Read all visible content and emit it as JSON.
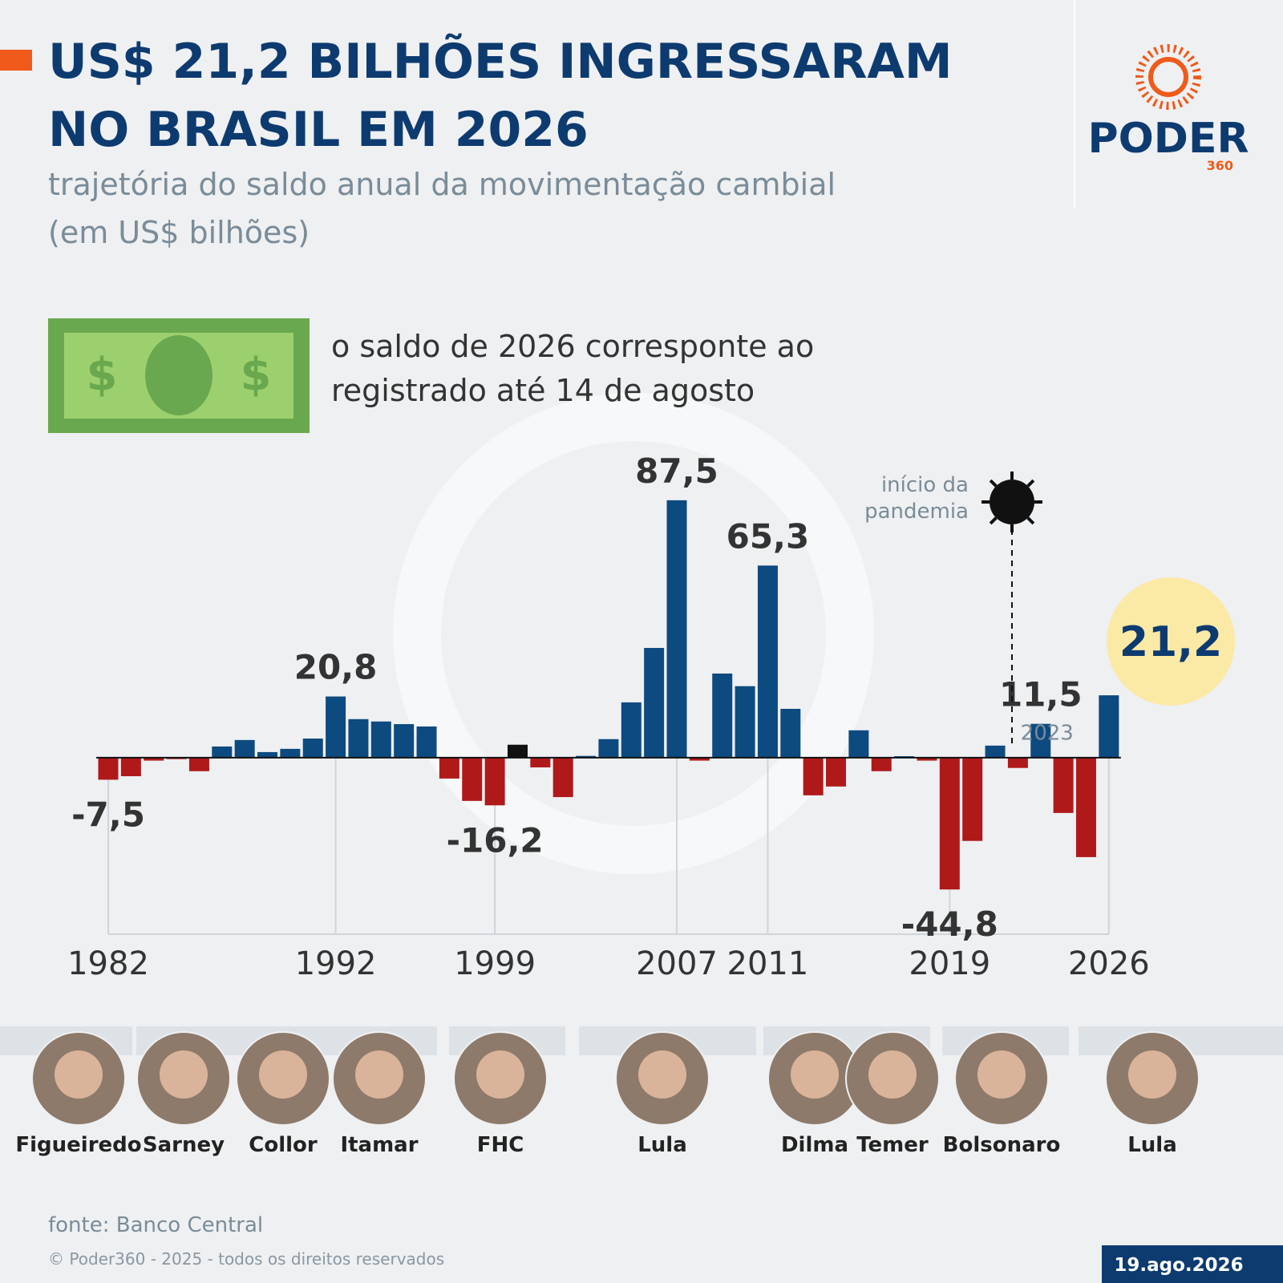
{
  "header": {
    "title_lines": [
      "US$ 21,2 BILHÕES INGRESSARAM",
      "NO BRASIL EM 2026"
    ],
    "subtitle_lines": [
      "trajetória do saldo anual da movimentação cambial",
      "(em US$ bilhões)"
    ],
    "logo": "PODER",
    "logo_sub": "360"
  },
  "note_lines": [
    "o saldo de 2026 corresponte ao",
    "registrado até 14 de agosto"
  ],
  "chart_data": {
    "type": "bar",
    "categories": [
      "1982",
      null,
      null,
      null,
      null,
      null,
      null,
      null,
      null,
      null,
      "1992",
      null,
      null,
      null,
      null,
      null,
      null,
      "1999",
      null,
      null,
      null,
      null,
      null,
      null,
      null,
      "2007",
      null,
      null,
      null,
      "2011",
      null,
      null,
      null,
      null,
      null,
      null,
      null,
      "2019",
      null,
      null,
      null,
      null,
      null,
      null,
      "2026"
    ],
    "values": [
      -7.5,
      -6.3,
      -1,
      -0.5,
      -4.6,
      3.8,
      6.0,
      1.9,
      3.0,
      6.5,
      20.8,
      13.1,
      12.3,
      11.4,
      10.6,
      -7.1,
      -14.7,
      -16.2,
      4.4,
      -3.3,
      -13.4,
      0.6,
      6.3,
      18.8,
      37.3,
      87.5,
      -1.0,
      28.6,
      24.3,
      65.3,
      16.6,
      -12.8,
      -9.8,
      9.3,
      -4.6,
      0.5,
      -1.0,
      -44.8,
      -28.3,
      4.1,
      -3.5,
      11.5,
      -18.8,
      -33.8,
      21.2
    ],
    "value_labels": [
      "-7,5",
      null,
      null,
      null,
      null,
      null,
      null,
      null,
      null,
      null,
      "20,8",
      null,
      null,
      null,
      null,
      null,
      null,
      "-16,2",
      null,
      null,
      null,
      null,
      null,
      null,
      null,
      "87,5",
      null,
      null,
      null,
      "65,3",
      null,
      null,
      null,
      null,
      null,
      null,
      null,
      "-44,8",
      null,
      null,
      null,
      "11,5",
      null,
      null,
      "21,2"
    ],
    "year_note": "2023",
    "positive_color": "#0d4a80",
    "negative_color": "#b0191a",
    "highlight": {
      "index": 18,
      "color": "#111111"
    },
    "ylim": [
      -60,
      100
    ],
    "annotation_lines": [
      "início da",
      "pandemia"
    ]
  },
  "presidents": [
    "Figueiredo",
    "Sarney",
    "Collor",
    "Itamar",
    "FHC",
    "Lula",
    "Dilma",
    "Temer",
    "Bolsonaro",
    "Lula"
  ],
  "footer": {
    "source": "fonte: Banco Central",
    "copyright": "© Poder360 - 2025 - todos os direitos reservados",
    "date": "19.ago.2026"
  }
}
